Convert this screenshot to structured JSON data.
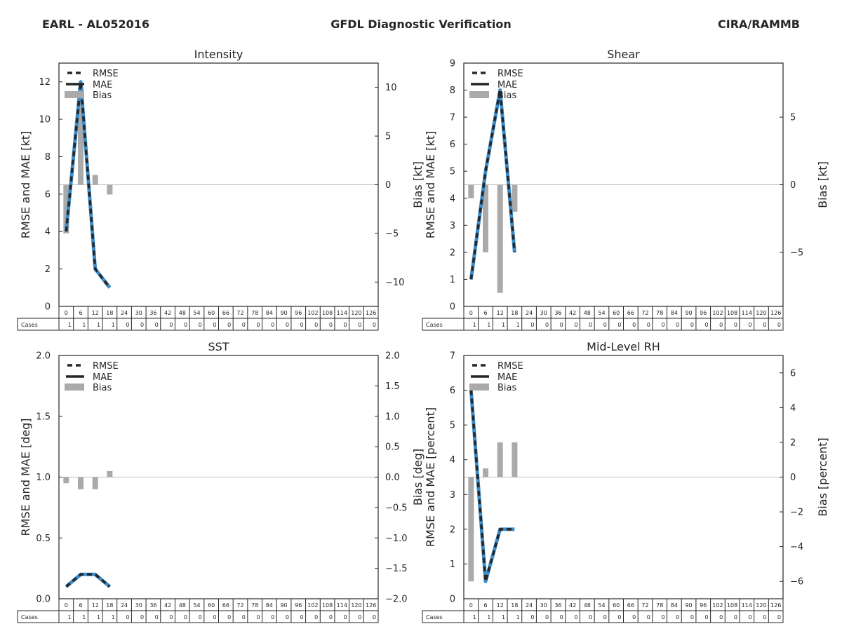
{
  "header": {
    "storm": "EARL - AL052016",
    "title": "GFDL Diagnostic Verification",
    "source": "CIRA/RAMMB"
  },
  "colors": {
    "bias_bar": "#aaaaaa",
    "mae_line": "#262626",
    "rmse_dash": "#262626",
    "highlight_line": "#3a8bc9",
    "zero_line": "#c0c0c0",
    "axis": "#262626"
  },
  "table": {
    "row_label": "Cases",
    "hours": [
      "0",
      "6",
      "12",
      "18",
      "24",
      "30",
      "36",
      "42",
      "48",
      "54",
      "60",
      "66",
      "72",
      "78",
      "84",
      "90",
      "96",
      "102",
      "108",
      "114",
      "120",
      "126"
    ]
  },
  "chart_data": [
    {
      "id": "intensity",
      "type": "line+bar",
      "title": "Intensity",
      "ylabel": "RMSE and MAE [kt]",
      "ylabel2": "Bias [kt]",
      "ylim": [
        0,
        13
      ],
      "yticks": [
        0,
        2,
        4,
        6,
        8,
        10,
        12
      ],
      "ytick_labels": [
        "0",
        "2",
        "4",
        "6",
        "8",
        "10",
        "12"
      ],
      "ylim2": [
        -12.5,
        12.5
      ],
      "yticks2": [
        -10,
        -5,
        0,
        5,
        10
      ],
      "ytick2_labels": [
        "−10",
        "−5",
        "0",
        "5",
        "10"
      ],
      "legend": [
        "RMSE",
        "MAE",
        "Bias"
      ],
      "x": [
        0,
        6,
        12,
        18
      ],
      "rmse": [
        4,
        12,
        2,
        1
      ],
      "mae": [
        4,
        12,
        2,
        1
      ],
      "bias": [
        -5,
        10,
        1,
        -1
      ],
      "cases": [
        1,
        1,
        1,
        1,
        0,
        0,
        0,
        0,
        0,
        0,
        0,
        0,
        0,
        0,
        0,
        0,
        0,
        0,
        0,
        0,
        0,
        0
      ]
    },
    {
      "id": "shear",
      "type": "line+bar",
      "title": "Shear",
      "ylabel": "RMSE and MAE [kt]",
      "ylabel2": "Bias [kt]",
      "ylim": [
        0,
        9
      ],
      "yticks": [
        0,
        1,
        2,
        3,
        4,
        5,
        6,
        7,
        8,
        9
      ],
      "ytick_labels": [
        "0",
        "1",
        "2",
        "3",
        "4",
        "5",
        "6",
        "7",
        "8",
        "9"
      ],
      "ylim2": [
        -9,
        9
      ],
      "yticks2": [
        -5,
        0,
        5
      ],
      "ytick2_labels": [
        "−5",
        "0",
        "5"
      ],
      "legend": [
        "RMSE",
        "MAE",
        "Bias"
      ],
      "x": [
        0,
        6,
        12,
        18
      ],
      "rmse": [
        1,
        5,
        8,
        2
      ],
      "mae": [
        1,
        5,
        8,
        2
      ],
      "bias": [
        -1,
        -5,
        -8,
        -2
      ],
      "cases": [
        1,
        1,
        1,
        1,
        0,
        0,
        0,
        0,
        0,
        0,
        0,
        0,
        0,
        0,
        0,
        0,
        0,
        0,
        0,
        0,
        0,
        0
      ]
    },
    {
      "id": "sst",
      "type": "line+bar",
      "title": "SST",
      "ylabel": "RMSE and MAE [deg]",
      "ylabel2": "Bias [deg]",
      "ylim": [
        0,
        2
      ],
      "yticks": [
        0,
        0.5,
        1,
        1.5,
        2
      ],
      "ytick_labels": [
        "0.0",
        "0.5",
        "1.0",
        "1.5",
        "2.0"
      ],
      "ylim2": [
        -2,
        2
      ],
      "yticks2": [
        -2,
        -1.5,
        -1,
        -0.5,
        0,
        0.5,
        1,
        1.5,
        2
      ],
      "ytick2_labels": [
        "−2.0",
        "−1.5",
        "−1.0",
        "−0.5",
        "0.0",
        "0.5",
        "1.0",
        "1.5",
        "2.0"
      ],
      "legend": [
        "RMSE",
        "MAE",
        "Bias"
      ],
      "x": [
        0,
        6,
        12,
        18
      ],
      "rmse": [
        0.1,
        0.2,
        0.2,
        0.1
      ],
      "mae": [
        0.1,
        0.2,
        0.2,
        0.1
      ],
      "bias": [
        -0.1,
        -0.2,
        -0.2,
        0.1
      ],
      "cases": [
        1,
        1,
        1,
        1,
        0,
        0,
        0,
        0,
        0,
        0,
        0,
        0,
        0,
        0,
        0,
        0,
        0,
        0,
        0,
        0,
        0,
        0
      ]
    },
    {
      "id": "midlevel-rh",
      "type": "line+bar",
      "title": "Mid-Level RH",
      "ylabel": "RMSE and MAE [percent]",
      "ylabel2": "Bias [percent]",
      "ylim": [
        0,
        7
      ],
      "yticks": [
        0,
        1,
        2,
        3,
        4,
        5,
        6,
        7
      ],
      "ytick_labels": [
        "0",
        "1",
        "2",
        "3",
        "4",
        "5",
        "6",
        "7"
      ],
      "ylim2": [
        -7,
        7
      ],
      "yticks2": [
        -6,
        -4,
        -2,
        0,
        2,
        4,
        6
      ],
      "ytick2_labels": [
        "−6",
        "−4",
        "−2",
        "0",
        "2",
        "4",
        "6"
      ],
      "legend": [
        "RMSE",
        "MAE",
        "Bias"
      ],
      "x": [
        0,
        6,
        12,
        18
      ],
      "rmse": [
        6,
        0.5,
        2,
        2
      ],
      "mae": [
        6,
        0.5,
        2,
        2
      ],
      "bias": [
        -6,
        0.5,
        2,
        2
      ],
      "cases": [
        1,
        1,
        1,
        1,
        0,
        0,
        0,
        0,
        0,
        0,
        0,
        0,
        0,
        0,
        0,
        0,
        0,
        0,
        0,
        0,
        0,
        0
      ]
    }
  ]
}
